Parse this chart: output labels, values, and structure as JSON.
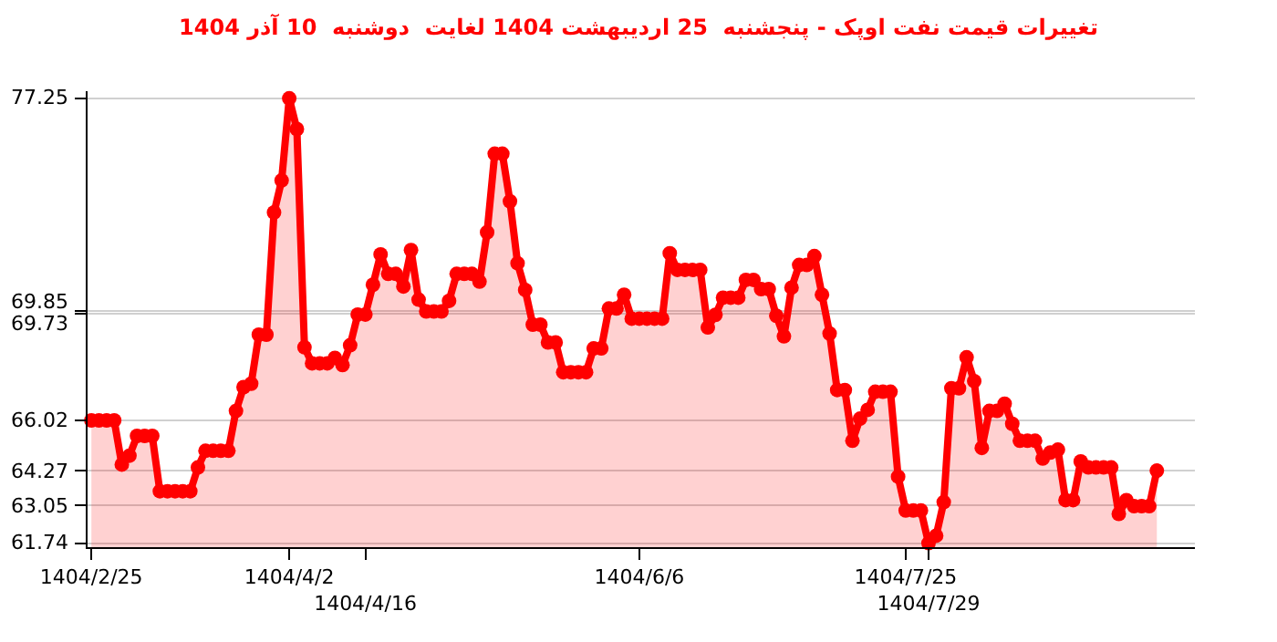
{
  "chart_data": {
    "type": "area",
    "title": "تغییرات قیمت نفت اوپک - پنجشنبه  25 اردیبهشت 1404 لغایت  دوشنبه  10 آذر 1404",
    "categories": [
      "1404/2/25",
      null,
      null,
      null,
      null,
      null,
      null,
      null,
      null,
      null,
      null,
      null,
      null,
      null,
      null,
      null,
      null,
      null,
      null,
      null,
      null,
      null,
      null,
      null,
      null,
      null,
      "1404/4/2",
      null,
      null,
      null,
      null,
      null,
      null,
      null,
      null,
      null,
      "1404/4/16",
      null,
      null,
      null,
      null,
      null,
      null,
      null,
      null,
      null,
      null,
      null,
      null,
      null,
      null,
      null,
      null,
      null,
      null,
      null,
      null,
      null,
      null,
      null,
      null,
      null,
      null,
      null,
      null,
      null,
      null,
      null,
      null,
      null,
      null,
      null,
      "1404/6/6",
      null,
      null,
      null,
      null,
      null,
      null,
      null,
      null,
      null,
      null,
      null,
      null,
      null,
      null,
      null,
      null,
      null,
      null,
      null,
      null,
      null,
      null,
      null,
      null,
      null,
      null,
      null,
      null,
      null,
      null,
      null,
      null,
      null,
      null,
      "1404/7/25",
      null,
      null,
      "1404/7/29",
      null,
      null,
      null,
      null,
      null,
      null,
      null,
      null,
      null,
      null,
      null,
      null,
      null,
      null,
      null,
      null,
      null,
      null,
      null,
      null,
      null,
      null,
      null,
      null,
      null,
      null,
      null,
      null,
      null,
      null
    ],
    "series": [
      {
        "color": "#ff0000",
        "values": [
          66.02,
          66.02,
          66.02,
          66.02,
          64.48,
          64.79,
          65.48,
          65.48,
          65.48,
          63.55,
          63.55,
          63.55,
          63.55,
          63.55,
          64.38,
          64.96,
          64.96,
          64.96,
          64.96,
          66.35,
          67.18,
          67.3,
          69.01,
          69.01,
          73.27,
          74.39,
          77.25,
          76.18,
          68.57,
          68.01,
          68.01,
          68.01,
          68.2,
          67.95,
          68.64,
          69.71,
          69.71,
          70.75,
          71.81,
          71.13,
          71.13,
          70.69,
          71.96,
          70.23,
          69.82,
          69.82,
          69.82,
          70.19,
          71.13,
          71.13,
          71.13,
          70.86,
          72.58,
          75.32,
          75.32,
          73.66,
          71.5,
          70.57,
          69.36,
          69.36,
          68.74,
          68.74,
          67.7,
          67.7,
          67.7,
          67.7,
          68.53,
          68.53,
          69.92,
          69.92,
          70.4,
          69.57,
          69.57,
          69.57,
          69.57,
          69.57,
          71.85,
          71.27,
          71.27,
          71.27,
          71.27,
          69.26,
          69.7,
          70.3,
          70.3,
          70.3,
          70.92,
          70.92,
          70.6,
          70.6,
          69.67,
          68.95,
          70.65,
          71.44,
          71.44,
          71.75,
          70.4,
          69.05,
          67.08,
          67.08,
          65.31,
          66.08,
          66.39,
          67.02,
          67.02,
          67.02,
          64.06,
          62.88,
          62.88,
          62.88,
          61.74,
          62.0,
          63.17,
          67.14,
          67.14,
          68.22,
          67.39,
          65.06,
          66.35,
          66.35,
          66.6,
          65.9,
          65.31,
          65.31,
          65.31,
          64.69,
          64.9,
          65.0,
          63.24,
          63.24,
          64.59,
          64.38,
          64.38,
          64.38,
          64.38,
          62.76,
          63.24,
          63.03,
          63.03,
          63.03,
          64.27
        ]
      }
    ],
    "ylim": [
      61.6,
      77.5
    ],
    "yticks": [
      61.74,
      63.05,
      64.27,
      66.02,
      69.73,
      69.85,
      77.25
    ],
    "grid": "y",
    "marker": "circle",
    "line_style": "solid"
  }
}
